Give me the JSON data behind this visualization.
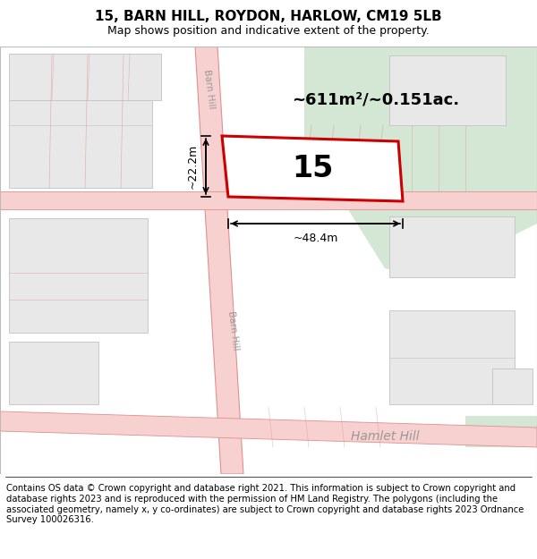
{
  "title_line1": "15, BARN HILL, ROYDON, HARLOW, CM19 5LB",
  "title_line2": "Map shows position and indicative extent of the property.",
  "footer_text": "Contains OS data © Crown copyright and database right 2021. This information is subject to Crown copyright and database rights 2023 and is reproduced with the permission of HM Land Registry. The polygons (including the associated geometry, namely x, y co-ordinates) are subject to Crown copyright and database rights 2023 Ordnance Survey 100026316.",
  "area_text": "~611m²/~0.151ac.",
  "house_number": "15",
  "dim_width": "~48.4m",
  "dim_height": "~22.2m",
  "road_label_barn_hill_top": "Barn Hill",
  "road_label_barn_hill_bottom": "Barn Hill",
  "road_label_hamlet_hill": "Hamlet Hill",
  "map_bg": "#ffffff",
  "road_color": "#f7d0d0",
  "road_border_color": "#e09090",
  "property_fill": "#ffffff",
  "property_border": "#cc0000",
  "green_area_color": "#d4e6d4",
  "building_fill": "#e8e8e8",
  "building_border": "#c8c8c8",
  "title_fontsize": 11,
  "subtitle_fontsize": 9,
  "footer_fontsize": 7.2
}
